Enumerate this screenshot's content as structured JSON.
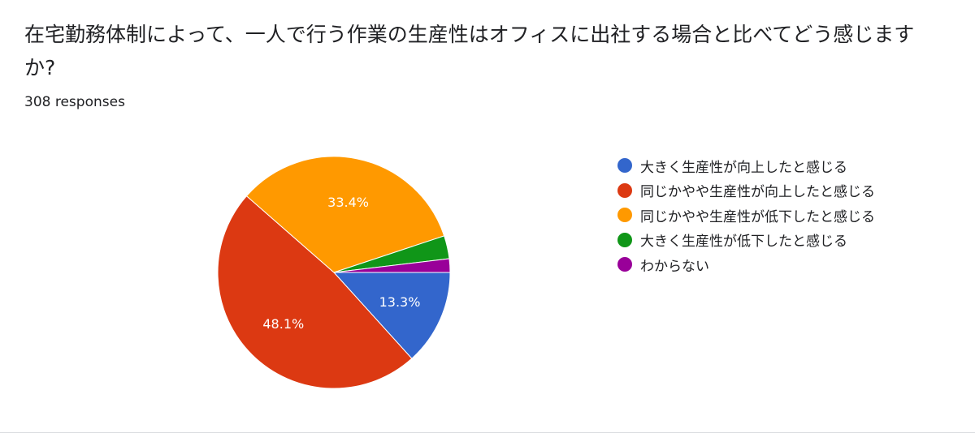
{
  "question": {
    "title": "在宅勤務体制によって、一人で行う作業の生産性はオフィスに出社する場合と比べてどう感じますか?",
    "responses": "308 responses"
  },
  "chart_data": {
    "type": "pie",
    "start_angle_deg": 90,
    "direction": "clockwise",
    "slices": [
      {
        "label": "大きく生産性が向上したと感じる",
        "value": 13.3,
        "display": "13.3%",
        "color": "#3366cc"
      },
      {
        "label": "同じかやや生産性が向上したと感じる",
        "value": 48.1,
        "display": "48.1%",
        "color": "#dc3912"
      },
      {
        "label": "同じかやや生産性が低下したと感じる",
        "value": 33.4,
        "display": "33.4%",
        "color": "#ff9900"
      },
      {
        "label": "大きく生産性が低下したと感じる",
        "value": 3.2,
        "display": "",
        "color": "#109618"
      },
      {
        "label": "わからない",
        "value": 1.9,
        "display": "",
        "color": "#990099"
      }
    ],
    "legend_position": "right"
  }
}
